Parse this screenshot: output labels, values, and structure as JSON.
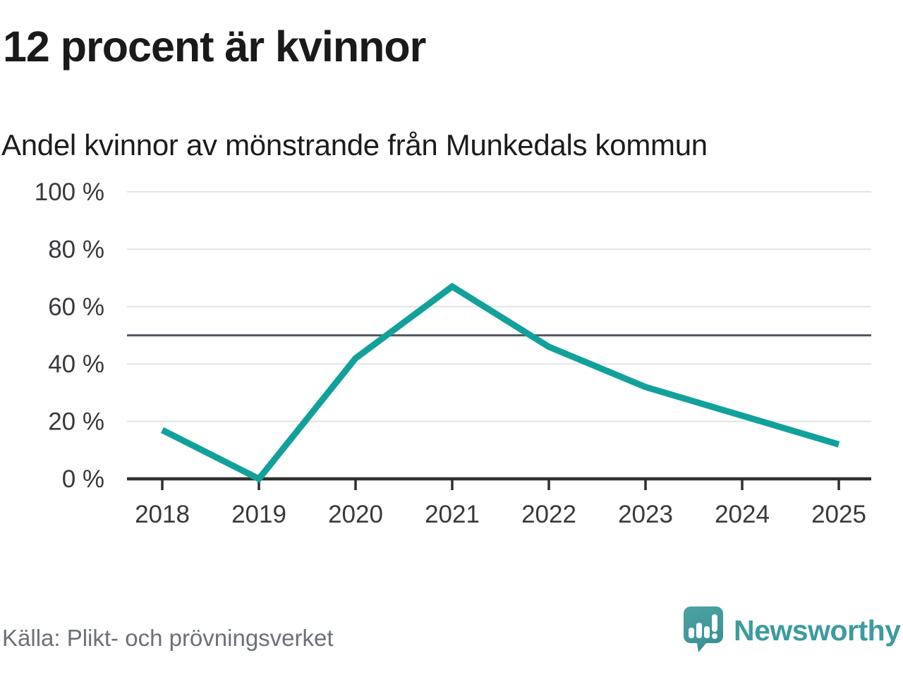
{
  "header": {
    "title": "12 procent är kvinnor",
    "subtitle": "Andel kvinnor av mönstrande från Munkedals kommun"
  },
  "footer": {
    "source": "Källa: Plikt- och prövningsverket",
    "brand_name": "Newsworthy"
  },
  "chart_data": {
    "type": "line",
    "title": "12 procent är kvinnor",
    "subtitle": "Andel kvinnor av mönstrande från Munkedals kommun",
    "categories": [
      "2018",
      "2019",
      "2020",
      "2021",
      "2022",
      "2023",
      "2024",
      "2025"
    ],
    "series": [
      {
        "name": "Andel kvinnor av mönstrande",
        "values": [
          17,
          0,
          42,
          67,
          46,
          32,
          22,
          12
        ]
      }
    ],
    "unit": "%",
    "ylim": [
      0,
      100
    ],
    "yticks": [
      0,
      20,
      40,
      60,
      80,
      100
    ],
    "ytick_suffix": " %",
    "reference_line": 50,
    "grid": true,
    "legend": "none",
    "colors": {
      "line": "#12a19a",
      "gridline": "#e3e3e3",
      "reference_line": "#56595f",
      "axis": "#2f2f2f",
      "tick_label": "#37393c",
      "brand_teal": "#3d9b9e",
      "logo_bubble": "#47999b"
    }
  }
}
